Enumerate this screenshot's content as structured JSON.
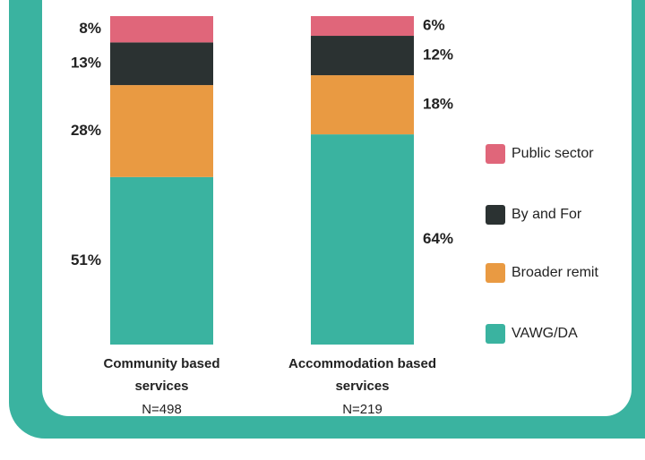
{
  "chart_data": {
    "type": "stacked_bar",
    "categories": [
      "Community based services",
      "Accommodation based services"
    ],
    "category_notes": [
      "N=498",
      "N=219"
    ],
    "series": [
      {
        "name": "VAWG/DA",
        "color": "#3ab3a0",
        "values": [
          51,
          64
        ],
        "value_labels": [
          "51%",
          "64%"
        ]
      },
      {
        "name": "Broader remit",
        "color": "#e99a42",
        "values": [
          28,
          18
        ],
        "value_labels": [
          "28%",
          "18%"
        ]
      },
      {
        "name": "By and For",
        "color": "#2b3232",
        "values": [
          13,
          12
        ],
        "value_labels": [
          "13%",
          "12%"
        ]
      },
      {
        "name": "Public sector",
        "color": "#e0667a",
        "values": [
          8,
          6
        ],
        "value_labels": [
          "8%",
          "6%"
        ]
      }
    ],
    "legend": "right"
  }
}
